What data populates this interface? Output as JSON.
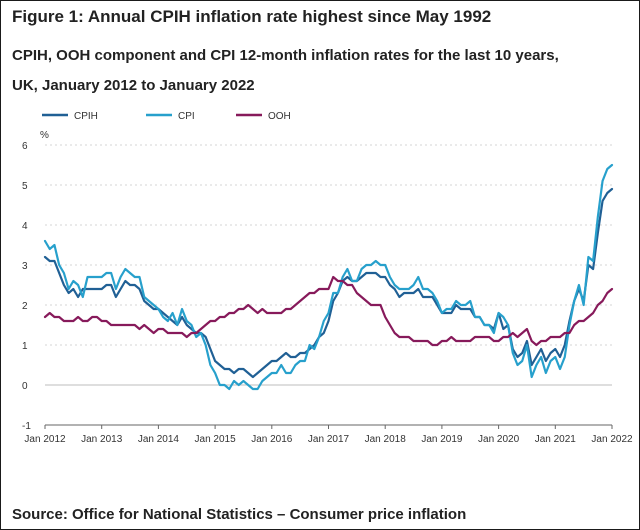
{
  "page": {
    "title": "Figure 1: Annual CPIH inflation rate highest since May 1992",
    "subtitle": "CPIH, OOH component and CPI 12-month inflation rates for the last 10 years, UK, January 2012 to January 2022",
    "source": "Source: Office for National Statistics – Consumer price inflation"
  },
  "chart_data": {
    "type": "line",
    "title": "Figure 1: Annual CPIH inflation rate highest since May 1992",
    "subtitle": "CPIH, OOH component and CPI 12-month inflation rates for the last 10 years, UK, January 2012 to January 2022",
    "ylabel": "%",
    "ylim": [
      -1,
      6
    ],
    "yticks": [
      -1,
      0,
      1,
      2,
      3,
      4,
      5,
      6
    ],
    "x_start": "Jan 2012",
    "x_end": "Jan 2022",
    "xticks": [
      "Jan 2012",
      "Jan 2013",
      "Jan 2014",
      "Jan 2015",
      "Jan 2016",
      "Jan 2017",
      "Jan 2018",
      "Jan 2019",
      "Jan 2020",
      "Jan 2021",
      "Jan 2022"
    ],
    "grid": "horizontal dashed",
    "legend_position": "top-left",
    "series": [
      {
        "name": "CPIH",
        "color": "#206095",
        "values": [
          3.2,
          3.1,
          3.1,
          2.8,
          2.5,
          2.3,
          2.4,
          2.2,
          2.4,
          2.4,
          2.4,
          2.4,
          2.4,
          2.5,
          2.5,
          2.2,
          2.4,
          2.6,
          2.5,
          2.5,
          2.4,
          2.1,
          2.0,
          1.9,
          1.9,
          1.8,
          1.7,
          1.6,
          1.5,
          1.7,
          1.5,
          1.4,
          1.3,
          1.3,
          1.2,
          0.9,
          0.6,
          0.5,
          0.4,
          0.4,
          0.3,
          0.4,
          0.4,
          0.3,
          0.2,
          0.3,
          0.4,
          0.5,
          0.6,
          0.6,
          0.7,
          0.8,
          0.7,
          0.7,
          0.8,
          0.8,
          0.9,
          1.0,
          1.2,
          1.3,
          1.6,
          2.1,
          2.3,
          2.6,
          2.7,
          2.6,
          2.6,
          2.7,
          2.8,
          2.8,
          2.8,
          2.7,
          2.7,
          2.5,
          2.4,
          2.2,
          2.3,
          2.3,
          2.3,
          2.4,
          2.2,
          2.2,
          2.2,
          2.0,
          1.8,
          1.8,
          1.8,
          2.0,
          1.9,
          1.9,
          1.9,
          1.7,
          1.7,
          1.5,
          1.5,
          1.4,
          1.8,
          1.4,
          1.5,
          0.9,
          0.7,
          0.8,
          1.1,
          0.5,
          0.7,
          0.9,
          0.6,
          0.8,
          0.9,
          0.7,
          1.0,
          1.6,
          2.1,
          2.4,
          2.1,
          3.0,
          2.9,
          3.8,
          4.6,
          4.8,
          4.9
        ]
      },
      {
        "name": "CPI",
        "color": "#27A0CC",
        "values": [
          3.6,
          3.4,
          3.5,
          3.0,
          2.8,
          2.4,
          2.6,
          2.5,
          2.2,
          2.7,
          2.7,
          2.7,
          2.7,
          2.8,
          2.8,
          2.4,
          2.7,
          2.9,
          2.8,
          2.7,
          2.7,
          2.2,
          2.1,
          2.0,
          1.9,
          1.7,
          1.6,
          1.8,
          1.5,
          1.9,
          1.6,
          1.5,
          1.2,
          1.3,
          1.0,
          0.5,
          0.3,
          0.0,
          0.0,
          -0.1,
          0.1,
          0.0,
          0.1,
          0.0,
          -0.1,
          -0.1,
          0.1,
          0.2,
          0.3,
          0.3,
          0.5,
          0.3,
          0.3,
          0.5,
          0.6,
          0.6,
          1.0,
          0.9,
          1.2,
          1.6,
          1.8,
          2.3,
          2.3,
          2.7,
          2.9,
          2.6,
          2.6,
          2.9,
          3.0,
          3.0,
          3.1,
          3.0,
          3.0,
          2.7,
          2.5,
          2.4,
          2.4,
          2.4,
          2.5,
          2.7,
          2.4,
          2.4,
          2.3,
          2.1,
          1.8,
          1.9,
          1.9,
          2.1,
          2.0,
          2.0,
          2.1,
          1.7,
          1.7,
          1.5,
          1.5,
          1.3,
          1.8,
          1.7,
          1.5,
          0.8,
          0.5,
          0.6,
          1.0,
          0.2,
          0.5,
          0.7,
          0.3,
          0.6,
          0.7,
          0.4,
          0.7,
          1.5,
          2.1,
          2.5,
          2.0,
          3.2,
          3.1,
          4.2,
          5.1,
          5.4,
          5.5
        ]
      },
      {
        "name": "OOH",
        "color": "#871A5B",
        "values": [
          1.7,
          1.8,
          1.7,
          1.7,
          1.6,
          1.6,
          1.6,
          1.7,
          1.6,
          1.6,
          1.7,
          1.7,
          1.6,
          1.6,
          1.5,
          1.5,
          1.5,
          1.5,
          1.5,
          1.5,
          1.4,
          1.5,
          1.4,
          1.3,
          1.4,
          1.4,
          1.3,
          1.3,
          1.3,
          1.3,
          1.2,
          1.3,
          1.3,
          1.4,
          1.5,
          1.6,
          1.6,
          1.7,
          1.7,
          1.8,
          1.8,
          1.9,
          1.9,
          2.0,
          1.9,
          1.8,
          1.9,
          1.8,
          1.8,
          1.8,
          1.8,
          1.9,
          1.9,
          2.0,
          2.1,
          2.2,
          2.3,
          2.3,
          2.4,
          2.4,
          2.4,
          2.7,
          2.6,
          2.6,
          2.5,
          2.5,
          2.3,
          2.2,
          2.1,
          2.0,
          2.0,
          2.0,
          1.7,
          1.5,
          1.3,
          1.2,
          1.2,
          1.2,
          1.1,
          1.1,
          1.1,
          1.1,
          1.0,
          1.0,
          1.1,
          1.1,
          1.2,
          1.1,
          1.1,
          1.1,
          1.1,
          1.2,
          1.2,
          1.2,
          1.2,
          1.1,
          1.1,
          1.2,
          1.2,
          1.3,
          1.2,
          1.3,
          1.4,
          1.1,
          1.0,
          1.1,
          1.1,
          1.2,
          1.2,
          1.2,
          1.3,
          1.3,
          1.5,
          1.6,
          1.6,
          1.7,
          1.8,
          2.0,
          2.1,
          2.3,
          2.4
        ]
      }
    ]
  }
}
